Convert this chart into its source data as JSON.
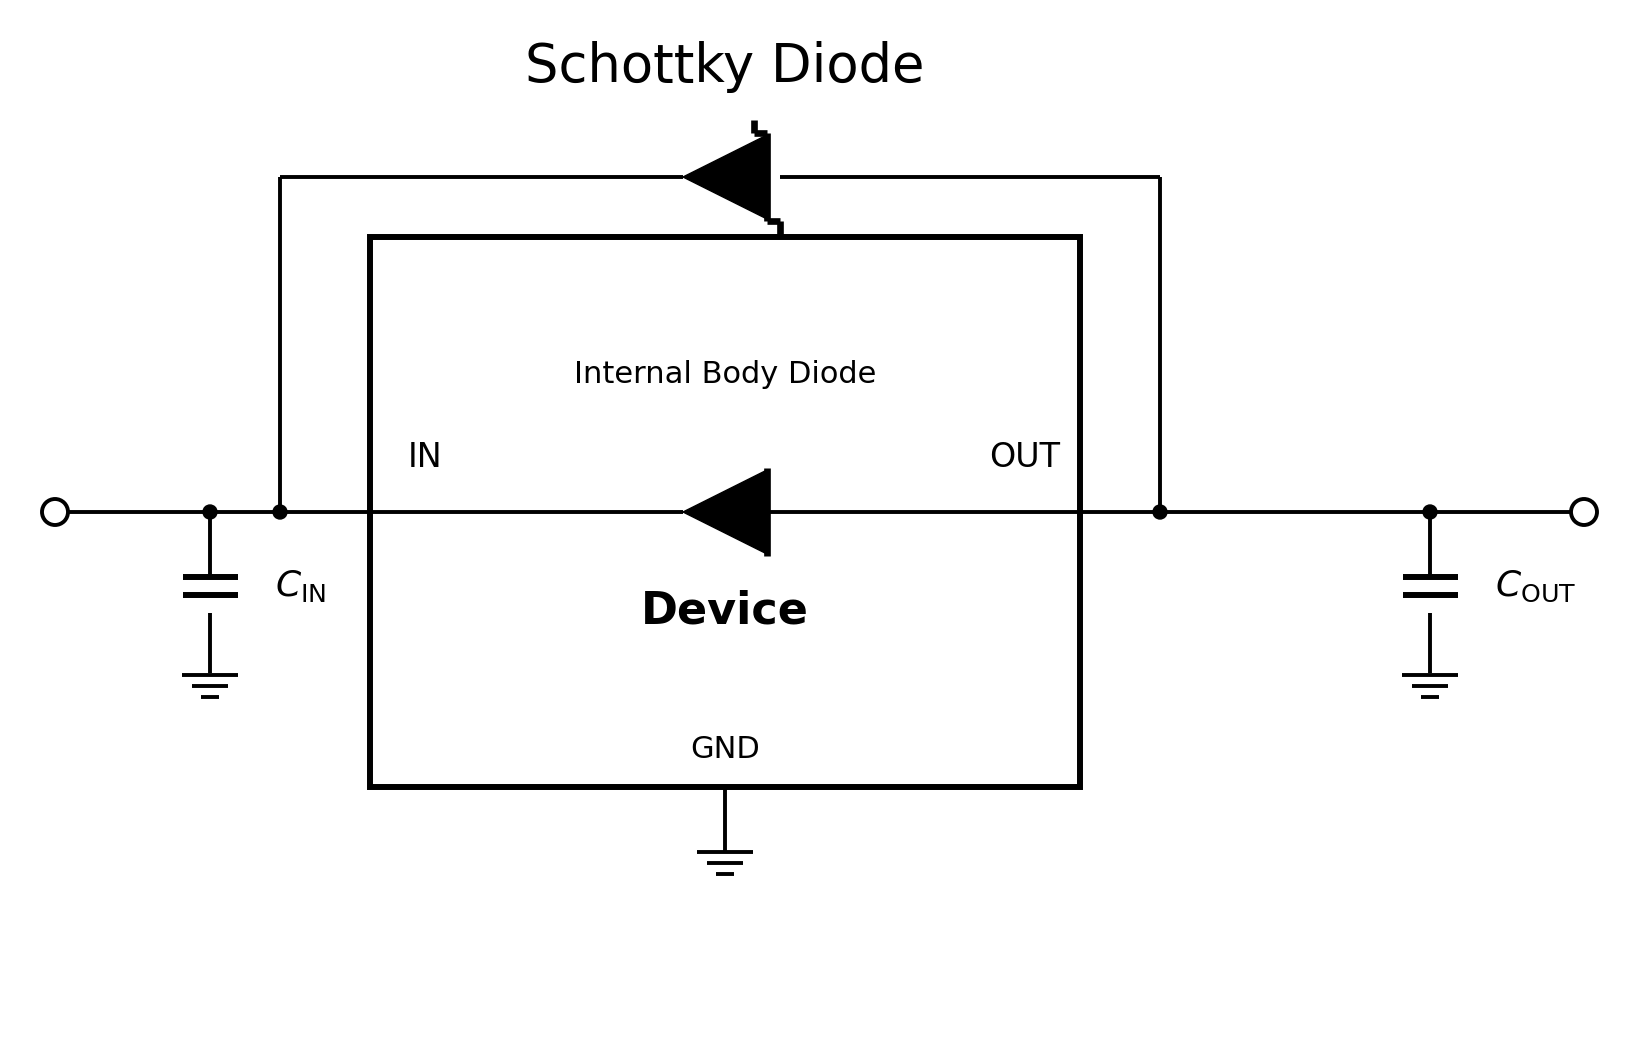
{
  "title": "Schottky Diode",
  "bg_color": "#ffffff",
  "line_color": "#000000",
  "line_width": 2.8,
  "fig_width": 16.39,
  "fig_height": 10.57,
  "device_label": "Device",
  "gnd_label": "GND",
  "in_label": "IN",
  "out_label": "OUT",
  "internal_body_diode_label": "Internal Body Diode",
  "title_fontsize": 38,
  "label_fontsize": 24,
  "device_fontsize": 32,
  "gnd_fontsize": 22,
  "ibd_fontsize": 22
}
